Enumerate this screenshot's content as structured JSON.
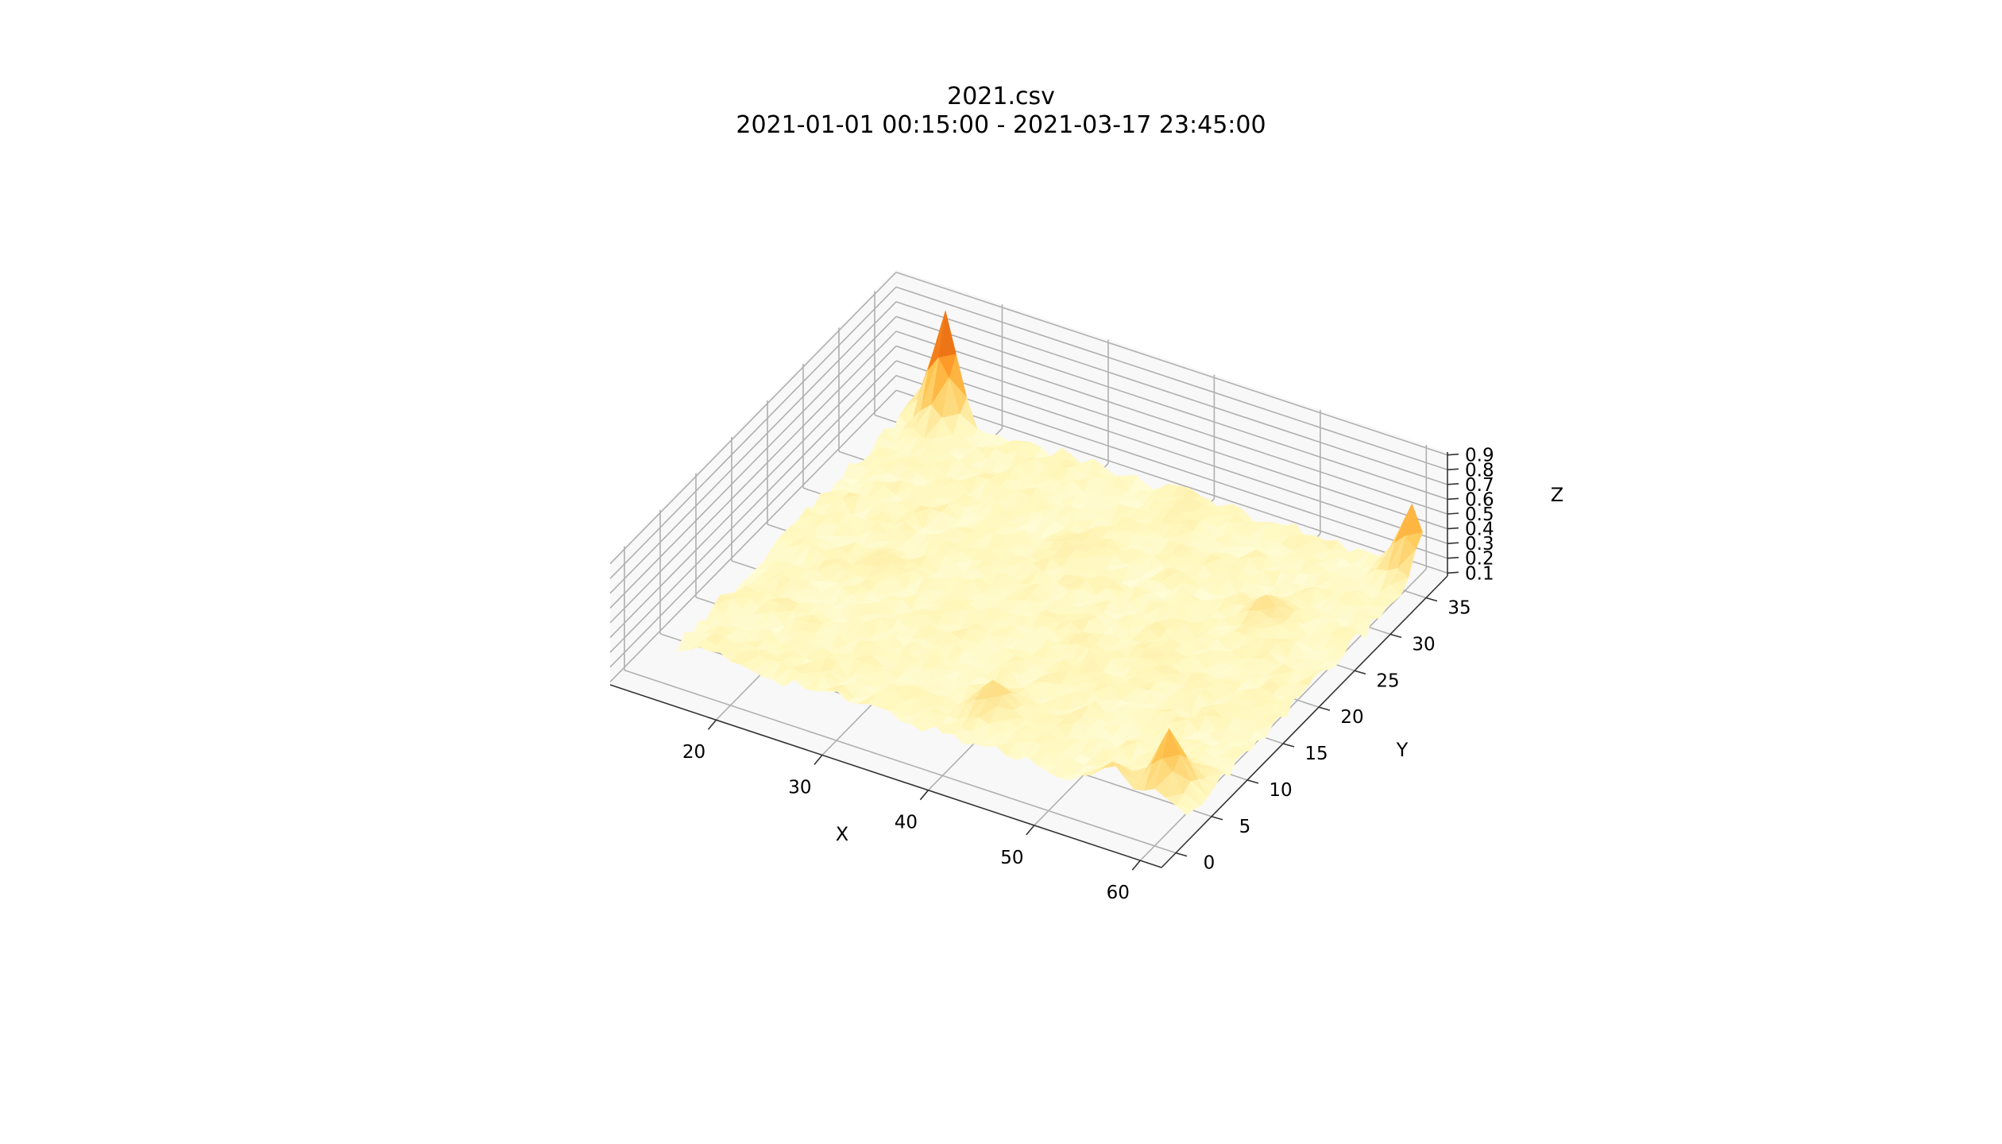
{
  "chart_data": {
    "type": "surface3d",
    "title": "2021.csv",
    "subtitle": "2021-01-01 00:15:00 - 2021-03-17 23:45:00",
    "xlabel": "X",
    "ylabel": "Y",
    "zlabel": "Z",
    "colormap": "YlOrBr",
    "colors": {
      "low": "#ffffe5",
      "mid": "#fec44f",
      "high": "#cc4c02",
      "peak": "#662506"
    },
    "xlim": [
      10,
      62
    ],
    "ylim": [
      -2,
      38
    ],
    "zlim": [
      0.08,
      0.92
    ],
    "x_ticks": [
      20,
      30,
      40,
      50,
      60
    ],
    "y_ticks": [
      0,
      5,
      10,
      15,
      20,
      25,
      30,
      35
    ],
    "z_ticks": [
      "0.1",
      "0.2",
      "0.3",
      "0.4",
      "0.5",
      "0.6",
      "0.7",
      "0.8",
      "0.9"
    ],
    "baseline_z": 0.18,
    "peaks": [
      {
        "x": 16,
        "y": 36,
        "z": 0.88
      },
      {
        "x": 60,
        "y": 36,
        "z": 0.62
      },
      {
        "x": 58,
        "y": 5,
        "z": 0.58
      },
      {
        "x": 54,
        "y": 3,
        "z": 0.36
      },
      {
        "x": 40,
        "y": 7,
        "z": 0.38
      },
      {
        "x": 53,
        "y": 26,
        "z": 0.33
      },
      {
        "x": 22,
        "y": 18,
        "z": 0.26
      },
      {
        "x": 40,
        "y": 34,
        "z": 0.25
      },
      {
        "x": 34,
        "y": 26,
        "z": 0.24
      },
      {
        "x": 48,
        "y": 18,
        "z": 0.24
      }
    ]
  }
}
